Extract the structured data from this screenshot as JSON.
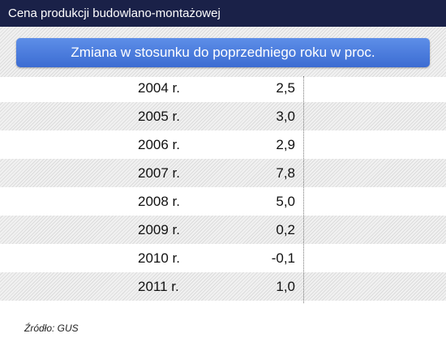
{
  "title": "Cena produkcji budowlano-montażowej",
  "header": "Zmiana w stosunku do poprzedniego roku w proc.",
  "source": "Źródło: GUS",
  "chart_data": {
    "type": "table",
    "title": "Cena produkcji budowlano-montażowej",
    "subtitle": "Zmiana w stosunku do poprzedniego roku w proc.",
    "categories": [
      "2004 r.",
      "2005 r.",
      "2006 r.",
      "2007 r.",
      "2008 r.",
      "2009 r.",
      "2010 r.",
      "2011 r."
    ],
    "values": [
      2.5,
      3.0,
      2.9,
      7.8,
      5.0,
      0.2,
      -0.1,
      1.0
    ],
    "value_labels": [
      "2,5",
      "3,0",
      "2,9",
      "7,8",
      "5,0",
      "0,2",
      "-0,1",
      "1,0"
    ]
  },
  "colors": {
    "title_bar": "#1a2148",
    "header_button": "#4a7de0"
  }
}
